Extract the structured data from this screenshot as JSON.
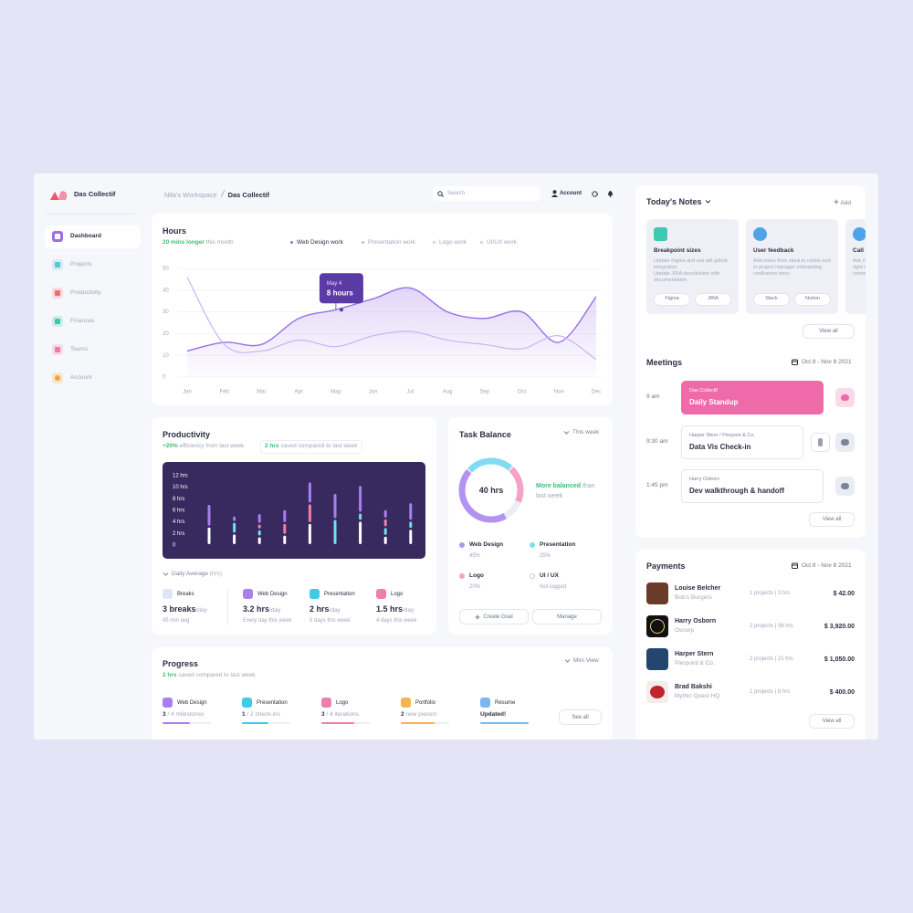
{
  "sidebar": {
    "brand": "Das Collectif",
    "nav": [
      "Dashboard",
      "Projects",
      "Productivity",
      "Finances",
      "Teams",
      "Account"
    ]
  },
  "topbar": {
    "breadcrumb": [
      "Nila's Workspace",
      "Das Collectif"
    ],
    "search": "Search",
    "account": "Account"
  },
  "chart_data": [
    {
      "type": "line",
      "title": "Hours",
      "highlight": "20 mins longer",
      "subtitle": "this month",
      "categories": [
        "Jan",
        "Feb",
        "Mar",
        "Apr",
        "May",
        "Jun",
        "Jul",
        "Aug",
        "Sep",
        "Oct",
        "Nov",
        "Dec"
      ],
      "ylim": [
        0,
        50
      ],
      "yticks": [
        0,
        10,
        20,
        30,
        40,
        50
      ],
      "grid": true,
      "series": [
        {
          "name": "Web Design work",
          "color": "#9a6ee6",
          "values": [
            12,
            16,
            15,
            27,
            31,
            36,
            41,
            30,
            27,
            30,
            16,
            37
          ]
        },
        {
          "name": "Presentation work",
          "color": "#c9b3f2",
          "values": [
            46,
            15,
            12,
            17,
            14,
            19,
            21,
            17,
            15,
            13,
            19,
            8
          ]
        },
        {
          "name": "Logo work",
          "color": "#c5c9d6",
          "values": [
            null,
            null,
            null,
            null,
            null,
            null,
            null,
            null,
            null,
            null,
            null,
            null
          ]
        },
        {
          "name": "UI/UX work",
          "color": "#c5c9d6",
          "values": [
            null,
            null,
            null,
            null,
            null,
            null,
            null,
            null,
            null,
            null,
            null,
            null
          ]
        }
      ],
      "annotation": {
        "title": "May 4",
        "text": "8 hours"
      }
    },
    {
      "type": "bar",
      "stacked": true,
      "title": "Productivity",
      "highlight": "+20%",
      "subtitle": "efficiency from last week",
      "note_highlight": "2 hrs",
      "note": "saved compared to last week",
      "categories": [
        null,
        null,
        null,
        null,
        null,
        null,
        null,
        null,
        null
      ],
      "ylim": [
        0,
        12
      ],
      "yticks": [
        0,
        {
          "value": 2,
          "label": "2 hrs"
        },
        {
          "value": 4,
          "label": "4 hrs"
        },
        {
          "value": 6,
          "label": "6 hrs"
        },
        {
          "value": 8,
          "label": "8 hrs"
        },
        {
          "value": 10,
          "label": "10 hrs"
        },
        {
          "value": 12,
          "label": "12 hrs"
        }
      ],
      "series": [
        {
          "name": "Breaks",
          "color": "#ffffff",
          "values": [
            3.2,
            2,
            1.5,
            1.8,
            3.8,
            0,
            4.2,
            1.6,
            2.8
          ]
        },
        {
          "name": "Web Design",
          "color": "#a77ff0",
          "values": [
            3.9,
            1.1,
            1.8,
            2.4,
            3.8,
            4.5,
            4.8,
            1.6,
            3.2
          ]
        },
        {
          "name": "Presentation",
          "color": "#72dcf2",
          "values": [
            0,
            2,
            1.2,
            0,
            0,
            4.5,
            1.4,
            1.5,
            1.4
          ]
        },
        {
          "name": "Logo",
          "color": "#f07eac",
          "values": [
            0,
            0,
            1,
            2,
            3.4,
            0,
            0,
            1.5,
            0
          ]
        }
      ],
      "footer": "Daily Average",
      "footer_unit": "(hrs)",
      "stats": [
        {
          "value": "3 breaks",
          "unit": "/day",
          "detail": "45 min avg"
        },
        {
          "value": "3.2 hrs",
          "unit": "/day",
          "detail": "Every day this week"
        },
        {
          "value": "2 hrs",
          "unit": "/day",
          "detail": "5 days this week"
        },
        {
          "value": "1.5 hrs",
          "unit": "/day",
          "detail": "4 days this week"
        }
      ]
    },
    {
      "type": "donut",
      "title": "Task Balance",
      "period": "This week",
      "center": "40 hrs",
      "highlight": "More balanced",
      "note": "than last week",
      "categories": [
        "Web Design",
        "Presentation",
        "Logo",
        "UI / UX"
      ],
      "values": [
        45,
        25,
        20,
        null
      ],
      "value_labels": [
        "45%",
        "25%",
        "20%",
        "Not logged"
      ],
      "colors": [
        "#b393f2",
        "#7fdcf2",
        "#f5a3c4",
        "#c5c9d6"
      ],
      "buttons": [
        "Create Goal",
        "Manage"
      ]
    }
  ],
  "progress": {
    "title": "Progress",
    "highlight": "2 hrs",
    "subtitle": "saved compared to last week",
    "view": "Mini View",
    "items": [
      {
        "name": "Web Design",
        "count": "3",
        "detail": " / 4 milestones",
        "progress": 57,
        "color": "#a77ff0"
      },
      {
        "name": "Presentation",
        "count": "1",
        "detail": " / 2 check-ins",
        "progress": 55,
        "color": "#3fcbe6"
      },
      {
        "name": "Logo",
        "count": "3",
        "detail": " / 4 iterations",
        "progress": 68,
        "color": "#f07eac"
      },
      {
        "name": "Portfolio",
        "count": "2",
        "detail": " new pieces!",
        "progress": 70,
        "color": "#f5b452"
      },
      {
        "name": "Resume",
        "status": "Updated!",
        "progress": 100,
        "color": "#7fb6ef"
      }
    ],
    "button": "See all"
  },
  "notes": {
    "title": "Today's Notes",
    "add": "Add",
    "cards": [
      {
        "title": "Breakpoint sizes",
        "bullets": [
          "Update Figma and ask abt github integration",
          "Update JIRA docs/tickets with documentation"
        ],
        "tags": [
          "Figma",
          "JIRA"
        ]
      },
      {
        "title": "User feedback",
        "body": "Add notes from slack to notion and to project manager onboarding confluence docs",
        "tags": [
          "Slack",
          "Notion"
        ]
      },
      {
        "title": "Call L",
        "lines": [
          "Ask m",
          "right t",
          "conse"
        ]
      }
    ],
    "button": "View all"
  },
  "meetings": {
    "title": "Meetings",
    "range": "Oct 8 - Nov 8 2021",
    "items": [
      {
        "time": "9 am",
        "org": "Das Collectif",
        "title": "Daily Standup"
      },
      {
        "time": "9:30 am",
        "org": "Harper Stern / Pierpont & Co.",
        "title": "Data Vis Check-in"
      },
      {
        "time": "1:45 pm",
        "org": "Harry Osborn",
        "title": "Dev walkthrough & handoff"
      }
    ],
    "button": "View all"
  },
  "payments": {
    "title": "Payments",
    "range": "Oct 8 - Nov 8 2021",
    "rows": [
      {
        "name": "Louise Belcher",
        "company": "Bob's Burgers",
        "projects": "1 projects | 3 hrs",
        "amount": "$ 42.00"
      },
      {
        "name": "Harry Osborn",
        "company": "Oscorp",
        "projects": "2 projects | 56 hrs",
        "amount": "$ 3,920.00"
      },
      {
        "name": "Harper Stern",
        "company": "Pierpoint & Co.",
        "projects": "2 projects | 21 hrs",
        "amount": "$ 1,050.00"
      },
      {
        "name": "Brad Bakshi",
        "company": "Mythic Quest HQ",
        "projects": "1 projects | 8 hrs",
        "amount": "$ 400.00"
      }
    ],
    "button": "View all"
  }
}
